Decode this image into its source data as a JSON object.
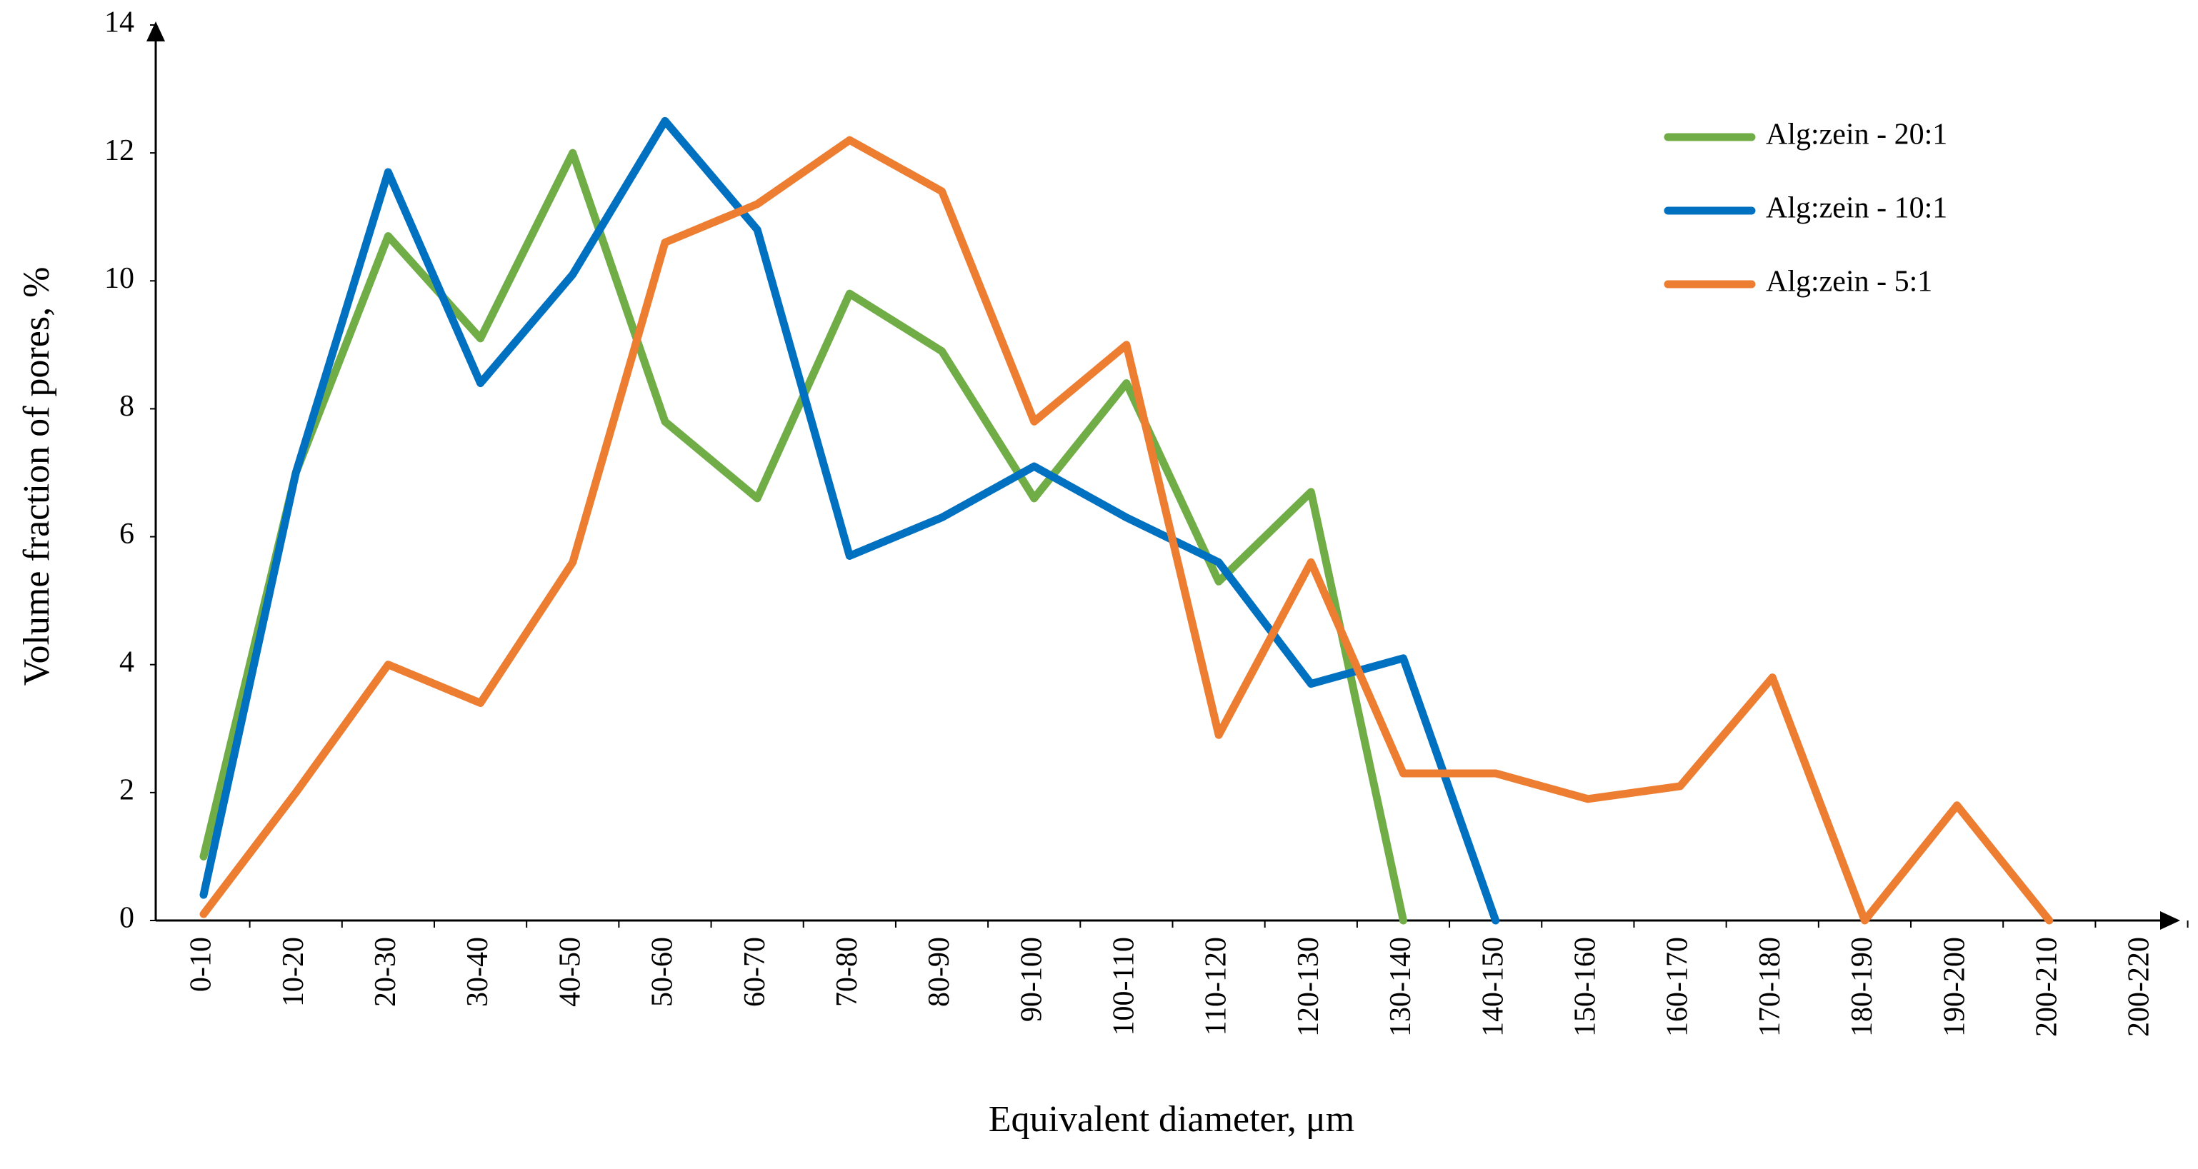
{
  "chart_data": {
    "type": "line",
    "xlabel": "Equivalent diameter, μm",
    "ylabel": "Volume fraction of pores, %",
    "categories": [
      "0-10",
      "10-20",
      "20-30",
      "30-40",
      "40-50",
      "50-60",
      "60-70",
      "70-80",
      "80-90",
      "90-100",
      "100-110",
      "110-120",
      "120-130",
      "130-140",
      "140-150",
      "150-160",
      "160-170",
      "170-180",
      "180-190",
      "190-200",
      "200-210",
      "200-220"
    ],
    "series": [
      {
        "name": "Alg:zein - 20:1",
        "color": "#70ad47",
        "values": [
          1.0,
          7.0,
          10.7,
          9.1,
          12.0,
          7.8,
          6.6,
          9.8,
          8.9,
          6.6,
          8.4,
          5.3,
          6.7,
          0,
          null,
          null,
          null,
          null,
          null,
          null,
          null,
          null
        ]
      },
      {
        "name": "Alg:zein - 10:1",
        "color": "#0070c0",
        "values": [
          0.4,
          7.0,
          11.7,
          8.4,
          10.1,
          12.5,
          10.8,
          5.7,
          6.3,
          7.1,
          6.3,
          5.6,
          3.7,
          4.1,
          0,
          null,
          null,
          null,
          null,
          null,
          null,
          null
        ]
      },
      {
        "name": "Alg:zein - 5:1",
        "color": "#ed7d31",
        "values": [
          0.1,
          2.0,
          4.0,
          3.4,
          5.6,
          10.6,
          11.2,
          12.2,
          11.4,
          7.8,
          9.0,
          2.9,
          5.6,
          2.3,
          2.3,
          1.9,
          2.1,
          3.8,
          0,
          1.8,
          0,
          null
        ]
      }
    ],
    "ylim": [
      0,
      14
    ],
    "yticks": [
      0,
      2,
      4,
      6,
      8,
      10,
      12,
      14
    ],
    "grid": false,
    "legend": "upper right"
  }
}
